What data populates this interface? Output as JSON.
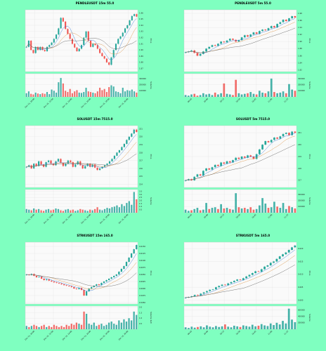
{
  "chart_data": [
    {
      "type": "candlestick",
      "title": "PENDLEUSDT 15m 55.0",
      "ylabel": "Price",
      "volume_ylabel": "Volume",
      "price_ticks": [
        "1.96",
        "1.95",
        "1.94",
        "1.93",
        "1.92",
        "1.91",
        "1.90",
        "1.89",
        "1.88",
        "1.87"
      ],
      "volume_ticks": [
        "300000",
        "200000",
        "100000"
      ],
      "x_ticks": [
        "Dec 15, 10:00",
        "Dec 15, 12:00",
        "Dec 15, 14:00",
        "Dec 15, 16:00",
        "Dec 15, 18:00",
        "Dec 15, 20:00"
      ],
      "ylim": [
        1.865,
        1.965
      ],
      "volume_ylim": [
        0,
        380000
      ],
      "close": [
        1.905,
        1.915,
        1.9,
        1.895,
        1.905,
        1.9,
        1.905,
        1.9,
        1.898,
        1.905,
        1.908,
        1.912,
        1.918,
        1.925,
        1.935,
        1.952,
        1.946,
        1.934,
        1.926,
        1.918,
        1.91,
        1.904,
        1.898,
        1.902,
        1.908,
        1.92,
        1.93,
        1.915,
        1.905,
        1.91,
        1.908,
        1.902,
        1.895,
        1.89,
        1.886,
        1.88,
        1.876,
        1.888,
        1.9,
        1.91,
        1.918,
        1.922,
        1.928,
        1.935,
        1.94,
        1.948,
        1.955,
        1.958,
        1.954
      ],
      "volume": [
        60000,
        90000,
        50000,
        40000,
        70000,
        55000,
        45000,
        60000,
        50000,
        80000,
        45000,
        120000,
        100000,
        70000,
        240000,
        310000,
        220000,
        100000,
        80000,
        130000,
        60000,
        90000,
        110000,
        70000,
        65000,
        80000,
        150000,
        90000,
        80000,
        70000,
        60000,
        90000,
        150000,
        110000,
        130000,
        80000,
        160000,
        190000,
        170000,
        90000,
        80000,
        60000,
        150000,
        90000,
        110000,
        100000,
        120000,
        90000,
        70000
      ],
      "ma_fast_color": "#2a6fcf",
      "ma_slow_color": "#d98c3a",
      "ma_long_color": "#555555"
    },
    {
      "type": "candlestick",
      "title": "PENDLEUSDT 5m 55.0",
      "ylabel": "Price",
      "volume_ylabel": "Volume",
      "price_ticks": [
        "1.98",
        "1.96",
        "1.94",
        "1.92",
        "1.90",
        "1.88",
        "1.86",
        "1.84",
        "1.82"
      ],
      "volume_ticks": [
        "300000",
        "200000",
        "100000"
      ],
      "x_ticks": [
        "09:45",
        "10:00",
        "10:15",
        "10:30",
        "10:45",
        "11:00",
        "11:15"
      ],
      "ylim": [
        1.815,
        1.99
      ],
      "volume_ylim": [
        0,
        380000
      ],
      "close": [
        1.87,
        1.872,
        1.875,
        1.868,
        1.86,
        1.865,
        1.872,
        1.88,
        1.885,
        1.89,
        1.888,
        1.894,
        1.9,
        1.898,
        1.903,
        1.908,
        1.905,
        1.9,
        1.904,
        1.912,
        1.918,
        1.914,
        1.92,
        1.926,
        1.922,
        1.93,
        1.934,
        1.932,
        1.938,
        1.944,
        1.94,
        1.95,
        1.955,
        1.962,
        1.958,
        1.966,
        1.972,
        1.968
      ],
      "volume": [
        30000,
        20000,
        40000,
        50000,
        20000,
        30000,
        60000,
        40000,
        50000,
        30000,
        70000,
        40000,
        60000,
        220000,
        50000,
        40000,
        30000,
        280000,
        60000,
        40000,
        50000,
        60000,
        80000,
        50000,
        40000,
        100000,
        70000,
        60000,
        90000,
        300000,
        80000,
        60000,
        70000,
        90000,
        60000,
        210000,
        120000,
        100000
      ],
      "ma_fast_color": "#2a6fcf",
      "ma_slow_color": "#d98c3a",
      "ma_long_color": "#555555"
    },
    {
      "type": "candlestick",
      "title": "SOLUSDT 15m 7515.0",
      "ylabel": "Price",
      "volume_ylabel": "Volume",
      "price_ticks": [
        "221",
        "220",
        "219",
        "218",
        "217",
        "216",
        "215",
        "214"
      ],
      "volume_ticks": [
        "3.5",
        "3.0",
        "2.5",
        "2.0",
        "1.5",
        "1.0",
        "0.5"
      ],
      "x_ticks": [
        "Dec 15, 10:00",
        "Dec 15, 12:00",
        "Dec 15, 14:00",
        "Dec 15, 16:00",
        "Dec 15, 18:00",
        "Dec 15, 20:00"
      ],
      "ylim": [
        213.6,
        221.4
      ],
      "volume_ylim": [
        0,
        3.8
      ],
      "close": [
        216.2,
        216.4,
        216.0,
        216.6,
        216.3,
        216.9,
        216.5,
        216.2,
        216.8,
        217.0,
        216.6,
        216.4,
        216.9,
        217.2,
        216.7,
        216.3,
        216.6,
        217.0,
        216.8,
        216.2,
        216.5,
        216.9,
        216.4,
        216.0,
        216.3,
        216.6,
        216.2,
        216.5,
        216.1,
        215.8,
        216.0,
        216.2,
        216.4,
        216.6,
        216.9,
        217.2,
        217.6,
        218.0,
        218.3,
        218.7,
        219.1,
        219.6,
        220.0,
        220.4,
        220.9,
        220.6
      ],
      "volume": [
        0.6,
        0.5,
        0.4,
        0.7,
        0.5,
        0.6,
        0.4,
        0.3,
        0.5,
        0.6,
        0.4,
        0.5,
        0.7,
        0.6,
        0.4,
        0.3,
        0.5,
        0.6,
        0.4,
        0.5,
        0.3,
        0.4,
        0.6,
        0.5,
        0.4,
        0.3,
        0.5,
        0.4,
        0.6,
        0.9,
        0.5,
        0.4,
        0.6,
        0.8,
        0.7,
        0.9,
        1.0,
        1.2,
        0.9,
        1.4,
        1.1,
        1.6,
        1.9,
        1.3,
        3.4,
        2.2
      ],
      "ma_fast_color": "#2a6fcf",
      "ma_slow_color": "#d98c3a",
      "ma_long_color": "#555555"
    },
    {
      "type": "candlestick",
      "title": "SOLUSDT 5m 7515.0",
      "ylabel": "Price",
      "volume_ylabel": "Volume",
      "price_ticks": [
        "221",
        "220",
        "219",
        "218",
        "217"
      ],
      "volume_ticks": [
        "300000",
        "200000",
        "100000"
      ],
      "x_ticks": [
        "09:45",
        "10:00",
        "10:15",
        "10:30",
        "10:45",
        "11:00",
        "11:15"
      ],
      "ylim": [
        216.4,
        221.6
      ],
      "volume_ylim": [
        0,
        380000
      ],
      "close": [
        217.0,
        217.1,
        217.0,
        217.3,
        217.5,
        217.4,
        217.8,
        218.0,
        217.9,
        218.1,
        218.3,
        218.2,
        218.5,
        218.4,
        218.6,
        218.5,
        218.7,
        218.9,
        218.8,
        219.0,
        218.9,
        219.1,
        219.0,
        218.8,
        219.2,
        219.6,
        220.0,
        220.3,
        220.2,
        220.4,
        220.6,
        220.5,
        220.7,
        220.9,
        221.0,
        220.8,
        221.1,
        221.0
      ],
      "volume": [
        50000,
        30000,
        40000,
        60000,
        80000,
        40000,
        50000,
        160000,
        60000,
        80000,
        90000,
        60000,
        140000,
        70000,
        80000,
        60000,
        50000,
        320000,
        90000,
        70000,
        80000,
        60000,
        90000,
        50000,
        60000,
        120000,
        240000,
        150000,
        80000,
        90000,
        180000,
        100000,
        80000,
        160000,
        60000,
        110000,
        90000,
        70000
      ],
      "ma_fast_color": "#2a6fcf",
      "ma_slow_color": "#d98c3a",
      "ma_long_color": "#555555"
    },
    {
      "type": "candlestick",
      "title": "STRKUSDT 15m 165.0",
      "ylabel": "Price",
      "volume_ylabel": "Volume 1e6",
      "price_ticks": [
        "0.6150",
        "0.6125",
        "0.6100",
        "0.6075",
        "0.6050",
        "0.6025",
        "0.6000",
        "0.5975",
        "0.5950"
      ],
      "volume_ticks": [
        "2.0",
        "1.5",
        "1.0",
        "0.5"
      ],
      "x_ticks": [
        "Dec 15, 10:00",
        "Dec 15, 12:00",
        "Dec 15, 14:00",
        "Dec 15, 16:00",
        "Dec 15, 18:00",
        "Dec 15, 20:00"
      ],
      "ylim": [
        0.5945,
        0.6165
      ],
      "volume_ylim": [
        0,
        2.1
      ],
      "close": [
        0.605,
        0.6048,
        0.6052,
        0.6045,
        0.604,
        0.6042,
        0.6035,
        0.603,
        0.6033,
        0.6028,
        0.6025,
        0.6022,
        0.602,
        0.6018,
        0.6015,
        0.6012,
        0.601,
        0.6008,
        0.6005,
        0.6,
        0.5998,
        0.6002,
        0.5995,
        0.5975,
        0.599,
        0.6,
        0.6005,
        0.601,
        0.6015,
        0.6012,
        0.602,
        0.6025,
        0.603,
        0.6035,
        0.604,
        0.6045,
        0.605,
        0.606,
        0.607,
        0.608,
        0.6095,
        0.611,
        0.6125,
        0.614,
        0.6155
      ],
      "volume": [
        0.3,
        0.2,
        0.3,
        0.4,
        0.3,
        0.2,
        0.3,
        0.4,
        0.2,
        0.3,
        0.2,
        0.4,
        0.3,
        0.2,
        0.3,
        0.2,
        0.4,
        0.3,
        0.5,
        0.4,
        0.6,
        0.5,
        0.4,
        1.6,
        1.4,
        0.5,
        0.4,
        0.6,
        0.3,
        0.4,
        0.5,
        0.3,
        0.4,
        0.6,
        0.7,
        0.5,
        0.4,
        0.8,
        0.6,
        0.9,
        0.7,
        1.0,
        0.8,
        1.6,
        1.3
      ],
      "ma_fast_color": "#2a6fcf",
      "ma_slow_color": "#d98c3a",
      "ma_long_color": "#555555"
    },
    {
      "type": "candlestick",
      "title": "STRKUSDT 5m 165.0",
      "ylabel": "Price",
      "volume_ylabel": "Volume",
      "price_ticks": [
        "0.620",
        "0.615",
        "0.610",
        "0.605",
        "0.600"
      ],
      "volume_ticks": [
        "600000",
        "400000",
        "200000"
      ],
      "x_ticks": [
        "09:45",
        "10:00",
        "10:15",
        "10:30",
        "10:45",
        "11:00",
        "11:15"
      ],
      "ylim": [
        0.5985,
        0.6225
      ],
      "volume_ylim": [
        0,
        720000
      ],
      "close": [
        0.601,
        0.6012,
        0.6015,
        0.602,
        0.6018,
        0.6025,
        0.603,
        0.6035,
        0.604,
        0.6042,
        0.605,
        0.6055,
        0.606,
        0.6058,
        0.6065,
        0.607,
        0.6075,
        0.608,
        0.6078,
        0.6085,
        0.6092,
        0.6098,
        0.6105,
        0.6112,
        0.611,
        0.612,
        0.613,
        0.6135,
        0.6145,
        0.615,
        0.616,
        0.617,
        0.6178,
        0.6185,
        0.6195,
        0.6205,
        0.6212
      ],
      "volume": [
        60000,
        40000,
        80000,
        50000,
        70000,
        90000,
        60000,
        120000,
        80000,
        60000,
        100000,
        70000,
        90000,
        150000,
        80000,
        60000,
        110000,
        90000,
        70000,
        120000,
        100000,
        80000,
        140000,
        90000,
        110000,
        160000,
        120000,
        100000,
        180000,
        130000,
        200000,
        150000,
        260000,
        180000,
        640000,
        300000,
        220000
      ],
      "ma_fast_color": "#2a6fcf",
      "ma_slow_color": "#d98c3a",
      "ma_long_color": "#555555"
    }
  ],
  "colors": {
    "background": "#7fffc0",
    "panel": "#fafafa",
    "up": "#26a69a",
    "down": "#ef5350",
    "grid": "#e2e2e2"
  }
}
